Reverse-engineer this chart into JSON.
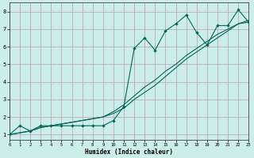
{
  "xlabel": "Humidex (Indice chaleur)",
  "bg_color": "#cceee8",
  "grid_color": "#c0a8b8",
  "line_color": "#006655",
  "line1_x": [
    0,
    1,
    2,
    3,
    4,
    5,
    6,
    7,
    8,
    9,
    10,
    11,
    12,
    13,
    14,
    15,
    16,
    17,
    18,
    19,
    20,
    21,
    22,
    23
  ],
  "line1_y": [
    1.0,
    1.5,
    1.2,
    1.5,
    1.5,
    1.5,
    1.5,
    1.5,
    1.5,
    1.5,
    1.8,
    2.6,
    5.9,
    6.5,
    5.8,
    6.9,
    7.3,
    7.8,
    6.8,
    6.1,
    7.2,
    7.2,
    8.1,
    7.4
  ],
  "line2_x": [
    0,
    1,
    2,
    3,
    4,
    5,
    6,
    7,
    8,
    9,
    10,
    11,
    12,
    13,
    14,
    15,
    16,
    17,
    18,
    19,
    20,
    21,
    22,
    23
  ],
  "line2_y": [
    1.0,
    1.1,
    1.2,
    1.4,
    1.5,
    1.6,
    1.7,
    1.8,
    1.9,
    2.0,
    2.2,
    2.5,
    3.0,
    3.4,
    3.8,
    4.3,
    4.8,
    5.3,
    5.7,
    6.1,
    6.5,
    6.9,
    7.3,
    7.4
  ],
  "line3_x": [
    0,
    1,
    2,
    3,
    4,
    5,
    6,
    7,
    8,
    9,
    10,
    11,
    12,
    13,
    14,
    15,
    16,
    17,
    18,
    19,
    20,
    21,
    22,
    23
  ],
  "line3_y": [
    1.0,
    1.1,
    1.2,
    1.4,
    1.5,
    1.6,
    1.7,
    1.8,
    1.9,
    2.0,
    2.3,
    2.7,
    3.2,
    3.7,
    4.1,
    4.6,
    5.0,
    5.5,
    5.9,
    6.3,
    6.7,
    7.0,
    7.3,
    7.5
  ],
  "xlim": [
    0,
    23
  ],
  "ylim": [
    0.7,
    8.5
  ],
  "xticks": [
    0,
    1,
    2,
    3,
    4,
    5,
    6,
    7,
    8,
    9,
    10,
    11,
    12,
    13,
    14,
    15,
    16,
    17,
    18,
    19,
    20,
    21,
    22,
    23
  ],
  "yticks": [
    1,
    2,
    3,
    4,
    5,
    6,
    7,
    8
  ]
}
